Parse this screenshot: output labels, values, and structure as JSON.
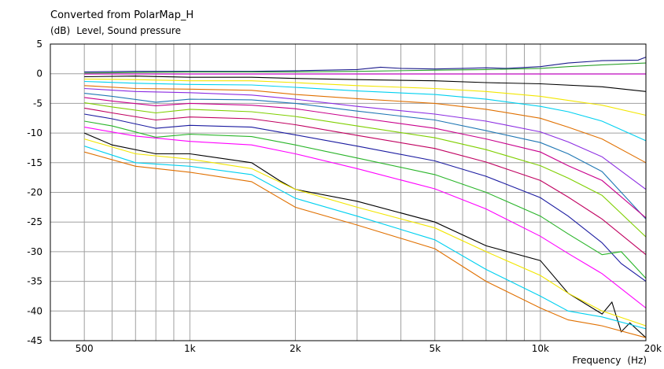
{
  "chart_data": {
    "type": "line",
    "title": "Converted from PolarMap_H",
    "ylabel_unit": "(dB)",
    "ylabel": "Level, Sound pressure",
    "xlabel": "Frequency",
    "xlabel_unit": "(Hz)",
    "x_scale": "log",
    "xlim": [
      400,
      20000
    ],
    "ylim": [
      -45,
      5
    ],
    "grid": true,
    "legend": "none",
    "x_tick_labels": [
      {
        "value": 500,
        "label": "500"
      },
      {
        "value": 1000,
        "label": "1k"
      },
      {
        "value": 2000,
        "label": "2k"
      },
      {
        "value": 5000,
        "label": "5k"
      },
      {
        "value": 10000,
        "label": "10k"
      },
      {
        "value": 20000,
        "label": "20k"
      }
    ],
    "y_ticks": [
      5,
      0,
      -5,
      -10,
      -15,
      -20,
      -25,
      -30,
      -35,
      -40,
      -45
    ],
    "x_gridlines": [
      500,
      600,
      700,
      800,
      900,
      1000,
      2000,
      3000,
      4000,
      5000,
      6000,
      7000,
      8000,
      9000,
      10000,
      20000
    ],
    "series": [
      {
        "color": "#1b1b8c",
        "x": [
          500,
          700,
          1000,
          1500,
          2000,
          3000,
          3500,
          4000,
          5000,
          6000,
          7000,
          8000,
          10000,
          12000,
          15000,
          19000,
          20000
        ],
        "y": [
          0.3,
          0.4,
          0.4,
          0.4,
          0.5,
          0.7,
          1.1,
          0.9,
          0.8,
          0.9,
          1.0,
          0.9,
          1.2,
          1.8,
          2.2,
          2.3,
          2.8
        ]
      },
      {
        "color": "#2ca02c",
        "x": [
          500,
          700,
          1000,
          2000,
          3000,
          5000,
          7000,
          10000,
          12000,
          15000,
          20000
        ],
        "y": [
          0.1,
          0.2,
          0.3,
          0.3,
          0.4,
          0.6,
          0.7,
          0.9,
          1.2,
          1.5,
          1.8
        ]
      },
      {
        "color": "#cc00cc",
        "x": [
          500,
          1000,
          2000,
          5000,
          10000,
          20000
        ],
        "y": [
          -0.05,
          -0.05,
          -0.05,
          -0.05,
          -0.05,
          -0.05
        ]
      },
      {
        "color": "#000000",
        "x": [
          500,
          700,
          1000,
          1500,
          2000,
          3000,
          5000,
          7000,
          10000,
          15000,
          20000
        ],
        "y": [
          -0.5,
          -0.4,
          -0.6,
          -0.6,
          -0.8,
          -1.0,
          -1.2,
          -1.5,
          -1.7,
          -2.2,
          -3.0
        ]
      },
      {
        "color": "#f2e600",
        "x": [
          500,
          700,
          1000,
          1500,
          2000,
          3000,
          5000,
          7000,
          10000,
          12000,
          15000,
          20000
        ],
        "y": [
          -0.9,
          -1.0,
          -1.2,
          -1.2,
          -1.5,
          -2.0,
          -2.5,
          -3.0,
          -3.8,
          -4.5,
          -5.3,
          -7.0
        ]
      },
      {
        "color": "#00d0f0",
        "x": [
          500,
          700,
          1000,
          1500,
          2000,
          3000,
          5000,
          7000,
          10000,
          12000,
          15000,
          20000
        ],
        "y": [
          -1.3,
          -1.6,
          -1.8,
          -1.9,
          -2.3,
          -2.9,
          -3.5,
          -4.3,
          -5.5,
          -6.4,
          -8.0,
          -11.3
        ]
      },
      {
        "color": "#e07000",
        "x": [
          500,
          700,
          1000,
          1500,
          2000,
          3000,
          5000,
          7000,
          10000,
          12000,
          15000,
          20000
        ],
        "y": [
          -2.0,
          -2.5,
          -2.6,
          -2.8,
          -3.5,
          -4.2,
          -5.0,
          -6.0,
          -7.5,
          -9.0,
          -11.0,
          -15.0
        ]
      },
      {
        "color": "#8b2be2",
        "x": [
          500,
          700,
          1000,
          1500,
          2000,
          3000,
          5000,
          7000,
          10000,
          12000,
          15000,
          20000
        ],
        "y": [
          -2.5,
          -3.0,
          -3.2,
          -3.6,
          -4.3,
          -5.5,
          -6.8,
          -8.0,
          -9.8,
          -11.5,
          -14.0,
          -19.5
        ]
      },
      {
        "color": "#1f77b4",
        "x": [
          500,
          600,
          800,
          1000,
          1500,
          2000,
          3000,
          5000,
          7000,
          10000,
          12000,
          15000,
          20000
        ],
        "y": [
          -3.3,
          -3.8,
          -4.8,
          -4.3,
          -4.4,
          -5.0,
          -6.3,
          -7.8,
          -9.6,
          -11.6,
          -13.5,
          -16.5,
          -24.5
        ]
      },
      {
        "color": "#c8008c",
        "x": [
          500,
          600,
          800,
          1000,
          1500,
          2000,
          3000,
          5000,
          7000,
          10000,
          12000,
          15000,
          20000
        ],
        "y": [
          -4.0,
          -4.6,
          -5.4,
          -5.0,
          -5.3,
          -5.9,
          -7.4,
          -9.2,
          -11.0,
          -13.2,
          -15.5,
          -18.0,
          -24.3
        ]
      },
      {
        "color": "#7fcf00",
        "x": [
          500,
          600,
          800,
          1000,
          1500,
          2000,
          3000,
          5000,
          7000,
          10000,
          12000,
          15000,
          20000
        ],
        "y": [
          -4.9,
          -5.6,
          -6.6,
          -6.0,
          -6.4,
          -7.2,
          -8.8,
          -10.8,
          -12.8,
          -15.5,
          -17.6,
          -20.5,
          -27.5
        ]
      },
      {
        "color": "#c00060",
        "x": [
          500,
          600,
          800,
          1000,
          1500,
          2000,
          3000,
          5000,
          7000,
          10000,
          12000,
          15000,
          20000
        ],
        "y": [
          -5.8,
          -6.6,
          -7.8,
          -7.3,
          -7.6,
          -8.6,
          -10.4,
          -12.6,
          -14.9,
          -18.0,
          -20.8,
          -24.5,
          -30.5
        ]
      },
      {
        "color": "#1a1aa0",
        "x": [
          500,
          600,
          800,
          1000,
          1500,
          2000,
          3000,
          5000,
          7000,
          10000,
          12000,
          15000,
          17000,
          20000
        ],
        "y": [
          -6.8,
          -7.6,
          -9.2,
          -8.7,
          -9.0,
          -10.3,
          -12.2,
          -14.7,
          -17.3,
          -20.9,
          -24.0,
          -28.5,
          -32.0,
          -35.0
        ]
      },
      {
        "color": "#29b529",
        "x": [
          500,
          600,
          800,
          1000,
          1500,
          2000,
          3000,
          5000,
          7000,
          10000,
          12000,
          15000,
          17000,
          20000
        ],
        "y": [
          -8.0,
          -8.8,
          -10.7,
          -10.2,
          -10.6,
          -12.0,
          -14.2,
          -17.0,
          -20.0,
          -24.0,
          -27.0,
          -30.5,
          -30.0,
          -34.5
        ]
      },
      {
        "color": "#000000",
        "x": [
          500,
          600,
          800,
          1000,
          1500,
          1800,
          2000,
          3000,
          5000,
          7000,
          10000,
          12000,
          15000,
          16000,
          17000,
          18000,
          20000
        ],
        "y": [
          -10.0,
          -12.0,
          -13.5,
          -13.5,
          -15.0,
          -18.0,
          -19.5,
          -21.5,
          -25.0,
          -29.0,
          -31.5,
          -37.0,
          -40.5,
          -38.5,
          -43.5,
          -42.0,
          -44.5
        ]
      },
      {
        "color": "#ff00ff",
        "x": [
          500,
          700,
          1000,
          1500,
          2000,
          3000,
          5000,
          7000,
          10000,
          12000,
          15000,
          20000
        ],
        "y": [
          -9.0,
          -10.5,
          -11.4,
          -12.0,
          -13.5,
          -16.0,
          -19.4,
          -22.8,
          -27.4,
          -30.3,
          -33.7,
          -39.5
        ]
      },
      {
        "color": "#f2e600",
        "x": [
          500,
          700,
          1000,
          1500,
          2000,
          3000,
          5000,
          7000,
          10000,
          12000,
          15000,
          20000
        ],
        "y": [
          -11.0,
          -13.5,
          -14.4,
          -16.0,
          -19.5,
          -22.5,
          -26.0,
          -30.0,
          -34.0,
          -37.0,
          -40.0,
          -42.5
        ]
      },
      {
        "color": "#00d0f0",
        "x": [
          500,
          700,
          1000,
          1500,
          2000,
          3000,
          5000,
          7000,
          10000,
          12000,
          15000,
          20000
        ],
        "y": [
          -12.2,
          -15.0,
          -15.6,
          -17.0,
          -21.0,
          -24.0,
          -28.0,
          -33.0,
          -37.5,
          -40.0,
          -41.0,
          -43.0
        ]
      },
      {
        "color": "#e07000",
        "x": [
          500,
          700,
          1000,
          1500,
          2000,
          3000,
          5000,
          7000,
          10000,
          12000,
          15000,
          20000
        ],
        "y": [
          -13.2,
          -15.6,
          -16.6,
          -18.2,
          -22.5,
          -25.5,
          -29.5,
          -35.0,
          -39.5,
          -41.5,
          -42.5,
          -44.5
        ]
      }
    ]
  }
}
